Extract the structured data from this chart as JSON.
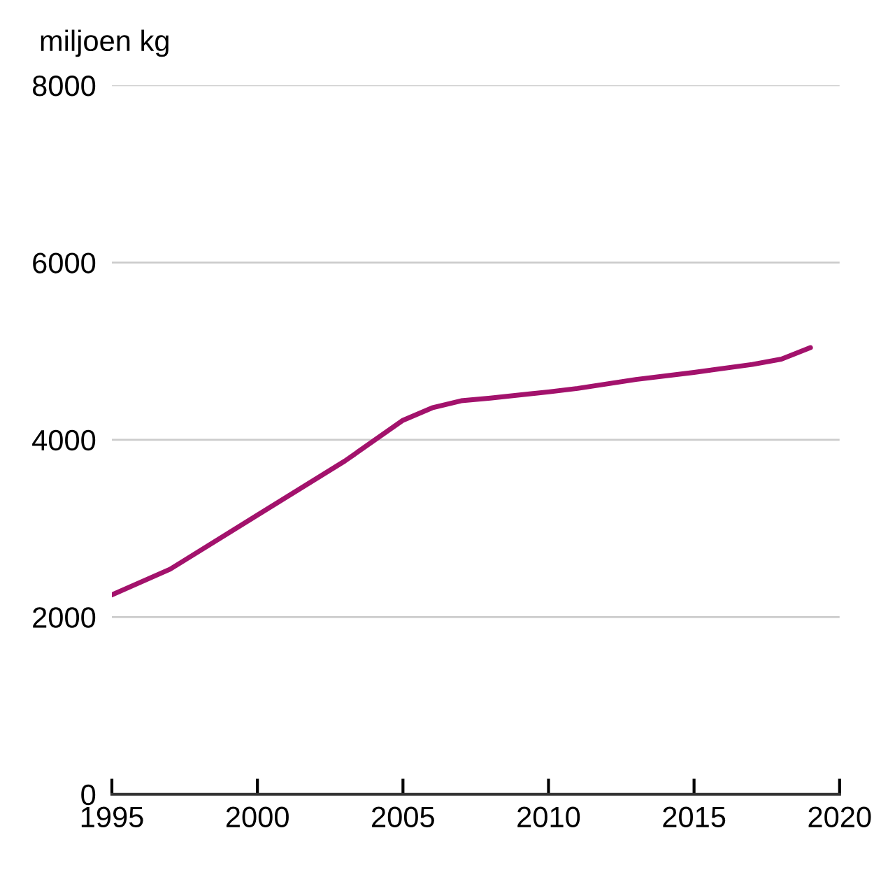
{
  "chart_data": {
    "type": "line",
    "ylabel": "miljoen kg",
    "x": [
      1995,
      1997,
      2000,
      2003,
      2005,
      2006,
      2007,
      2008,
      2010,
      2011,
      2013,
      2015,
      2017,
      2018,
      2019
    ],
    "series": [
      {
        "color": "#a3126c",
        "values": [
          2250,
          2540,
          3150,
          3760,
          4220,
          4360,
          4440,
          4470,
          4540,
          4580,
          4680,
          4760,
          4850,
          4910,
          5040
        ]
      }
    ],
    "xlim": [
      1995,
      2020
    ],
    "xticks": [
      1995,
      2000,
      2005,
      2010,
      2015,
      2020
    ],
    "ylim": [
      0,
      8000
    ],
    "yticks": [
      0,
      2000,
      4000,
      6000,
      8000
    ],
    "grid": "y",
    "legend": false,
    "marker": "none",
    "line_style": "solid"
  }
}
